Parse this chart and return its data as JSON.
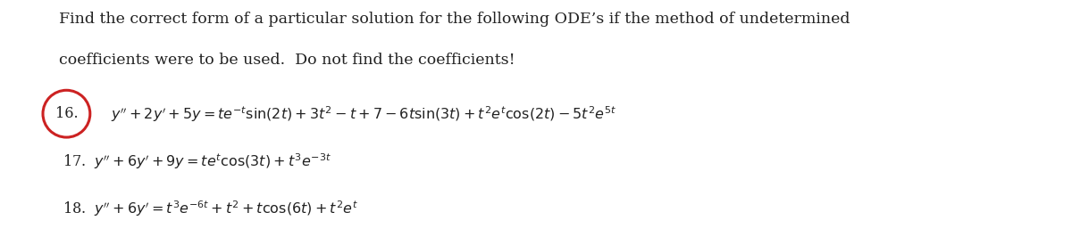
{
  "bg_color": "#ffffff",
  "header_line1": "Find the correct form of a particular solution for the following ODE’s if the method of undetermined",
  "header_line2": "coefficients were to be used.  Do not find the coefficients!",
  "circle_color": "#cc2222",
  "text_color": "#222222",
  "font_size_header": 12.5,
  "font_size_eq": 11.5,
  "eq16_num": "16.",
  "eq16_body": "$y'' + 2y' + 5y = te^{-t}\\sin(2t) + 3t^2 - t + 7 - 6t\\sin(3t) + t^2e^{t}\\cos(2t) - 5t^2e^{5t}$",
  "eq17": "17.  $y'' + 6y' + 9y = te^{t}\\cos(3t) + t^3e^{-3t}$",
  "eq18": "18.  $y'' + 6y' = t^3e^{-6t} + t^2 + t\\cos(6t) + t^2e^{t}$"
}
